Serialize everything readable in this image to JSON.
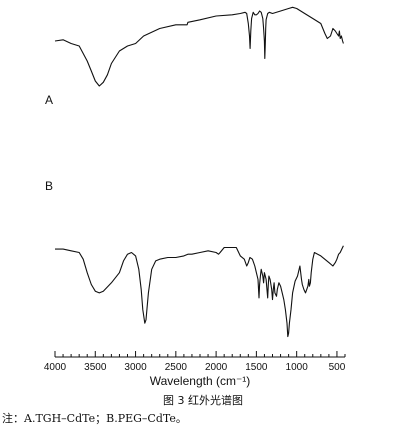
{
  "chart_data": {
    "type": "line",
    "title": "",
    "xlabel": "Wavelength (cm⁻¹)",
    "ylabel": "",
    "xlim": [
      4000,
      400
    ],
    "x_reversed": true,
    "x_ticks": [
      4000,
      3500,
      3000,
      2500,
      2000,
      1500,
      1000,
      500
    ],
    "tick_labels": [
      "4000",
      "3500",
      "3000",
      "2500",
      "2000",
      "1500",
      "1000",
      "500"
    ],
    "grid": false,
    "legend": "none",
    "y_axis_shown": false,
    "ylim": [
      0,
      100
    ],
    "series": [
      {
        "name": "A",
        "color": "#111111",
        "points": [
          [
            4000,
            76
          ],
          [
            3900,
            77
          ],
          [
            3800,
            74
          ],
          [
            3700,
            72
          ],
          [
            3600,
            60
          ],
          [
            3550,
            52
          ],
          [
            3500,
            44
          ],
          [
            3450,
            40
          ],
          [
            3400,
            43
          ],
          [
            3350,
            49
          ],
          [
            3300,
            58
          ],
          [
            3200,
            68
          ],
          [
            3100,
            72
          ],
          [
            3000,
            74
          ],
          [
            2900,
            80
          ],
          [
            2700,
            86
          ],
          [
            2500,
            89
          ],
          [
            2360,
            89
          ],
          [
            2350,
            91
          ],
          [
            2200,
            93
          ],
          [
            2000,
            96
          ],
          [
            1800,
            97
          ],
          [
            1700,
            98
          ],
          [
            1640,
            99
          ],
          [
            1620,
            98
          ],
          [
            1600,
            90
          ],
          [
            1585,
            80
          ],
          [
            1578,
            70
          ],
          [
            1570,
            84
          ],
          [
            1560,
            94
          ],
          [
            1540,
            99
          ],
          [
            1520,
            97
          ],
          [
            1500,
            97
          ],
          [
            1480,
            98
          ],
          [
            1460,
            100
          ],
          [
            1440,
            99
          ],
          [
            1420,
            94
          ],
          [
            1410,
            86
          ],
          [
            1400,
            76
          ],
          [
            1395,
            62
          ],
          [
            1390,
            74
          ],
          [
            1385,
            86
          ],
          [
            1380,
            93
          ],
          [
            1360,
            98
          ],
          [
            1340,
            99
          ],
          [
            1300,
            98
          ],
          [
            1200,
            100
          ],
          [
            1100,
            102
          ],
          [
            1050,
            103
          ],
          [
            1000,
            102
          ],
          [
            950,
            100
          ],
          [
            900,
            98
          ],
          [
            800,
            94
          ],
          [
            700,
            90
          ],
          [
            650,
            82
          ],
          [
            620,
            78
          ],
          [
            580,
            80
          ],
          [
            550,
            86
          ],
          [
            520,
            84
          ],
          [
            500,
            82
          ],
          [
            480,
            80
          ],
          [
            470,
            84
          ],
          [
            460,
            78
          ],
          [
            445,
            80
          ],
          [
            430,
            76
          ],
          [
            420,
            74
          ]
        ]
      },
      {
        "name": "B",
        "color": "#111111",
        "points": [
          [
            4000,
            54
          ],
          [
            3900,
            54
          ],
          [
            3800,
            53
          ],
          [
            3700,
            52
          ],
          [
            3650,
            48
          ],
          [
            3600,
            40
          ],
          [
            3550,
            33
          ],
          [
            3500,
            29
          ],
          [
            3450,
            28
          ],
          [
            3400,
            29
          ],
          [
            3300,
            34
          ],
          [
            3200,
            40
          ],
          [
            3150,
            47
          ],
          [
            3100,
            51
          ],
          [
            3050,
            52
          ],
          [
            3000,
            50
          ],
          [
            2960,
            42
          ],
          [
            2930,
            30
          ],
          [
            2910,
            18
          ],
          [
            2885,
            10
          ],
          [
            2870,
            12
          ],
          [
            2840,
            28
          ],
          [
            2800,
            42
          ],
          [
            2750,
            47
          ],
          [
            2700,
            48
          ],
          [
            2600,
            49
          ],
          [
            2500,
            49
          ],
          [
            2400,
            50
          ],
          [
            2350,
            51
          ],
          [
            2300,
            51
          ],
          [
            2200,
            52
          ],
          [
            2100,
            53
          ],
          [
            2000,
            52
          ],
          [
            1970,
            51
          ],
          [
            1950,
            52
          ],
          [
            1900,
            55
          ],
          [
            1800,
            55
          ],
          [
            1750,
            55
          ],
          [
            1700,
            50
          ],
          [
            1650,
            48
          ],
          [
            1620,
            44
          ],
          [
            1600,
            46
          ],
          [
            1580,
            49
          ],
          [
            1550,
            48
          ],
          [
            1520,
            44
          ],
          [
            1500,
            40
          ],
          [
            1480,
            36
          ],
          [
            1467,
            25
          ],
          [
            1460,
            33
          ],
          [
            1450,
            38
          ],
          [
            1440,
            42
          ],
          [
            1430,
            40
          ],
          [
            1420,
            38
          ],
          [
            1410,
            34
          ],
          [
            1400,
            40
          ],
          [
            1390,
            38
          ],
          [
            1380,
            36
          ],
          [
            1360,
            25
          ],
          [
            1352,
            33
          ],
          [
            1345,
            38
          ],
          [
            1330,
            36
          ],
          [
            1310,
            30
          ],
          [
            1300,
            24
          ],
          [
            1290,
            30
          ],
          [
            1280,
            34
          ],
          [
            1270,
            28
          ],
          [
            1250,
            26
          ],
          [
            1240,
            30
          ],
          [
            1220,
            34
          ],
          [
            1200,
            32
          ],
          [
            1180,
            28
          ],
          [
            1160,
            24
          ],
          [
            1140,
            18
          ],
          [
            1120,
            10
          ],
          [
            1110,
            2
          ],
          [
            1100,
            4
          ],
          [
            1090,
            10
          ],
          [
            1070,
            18
          ],
          [
            1050,
            28
          ],
          [
            1020,
            35
          ],
          [
            990,
            38
          ],
          [
            960,
            44
          ],
          [
            950,
            40
          ],
          [
            940,
            36
          ],
          [
            930,
            33
          ],
          [
            910,
            30
          ],
          [
            890,
            28
          ],
          [
            860,
            32
          ],
          [
            850,
            36
          ],
          [
            842,
            32
          ],
          [
            830,
            34
          ],
          [
            820,
            40
          ],
          [
            800,
            48
          ],
          [
            780,
            52
          ],
          [
            700,
            50
          ],
          [
            600,
            46
          ],
          [
            550,
            44
          ],
          [
            520,
            46
          ],
          [
            500,
            48
          ],
          [
            480,
            51
          ],
          [
            460,
            52
          ],
          [
            440,
            54
          ],
          [
            420,
            56
          ]
        ]
      }
    ]
  },
  "figure": {
    "caption": "图 3  红外光谱图",
    "note": "注：A.TGH–CdTe；B.PEG–CdTe。"
  }
}
